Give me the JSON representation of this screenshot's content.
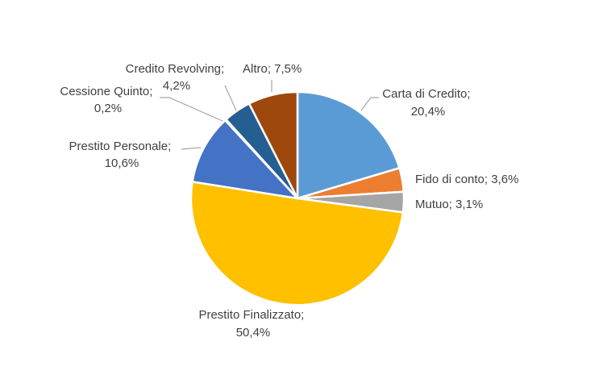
{
  "chart_data": {
    "type": "pie",
    "start_angle_deg": 0,
    "direction": "clockwise",
    "slices": [
      {
        "label": "Carta di Credito",
        "value_text": "20,4%",
        "value": 20.4,
        "color": "#5b9bd5"
      },
      {
        "label": "Fido di conto",
        "value_text": "3,6%",
        "value": 3.6,
        "color": "#ed7d31"
      },
      {
        "label": "Mutuo",
        "value_text": "3,1%",
        "value": 3.1,
        "color": "#a5a5a5"
      },
      {
        "label": "Prestito Finalizzato",
        "value_text": "50,4%",
        "value": 50.4,
        "color": "#ffc000"
      },
      {
        "label": "Prestito Personale",
        "value_text": "10,6%",
        "value": 10.6,
        "color": "#4472c4"
      },
      {
        "label": "Cessione Quinto",
        "value_text": "0,2%",
        "value": 0.2,
        "color": "#70ad47"
      },
      {
        "label": "Credito Revolving",
        "value_text": "4,2%",
        "value": 4.2,
        "color": "#255e91"
      },
      {
        "label": "Altro",
        "value_text": "7,5%",
        "value": 7.5,
        "color": "#9e480e"
      }
    ]
  }
}
